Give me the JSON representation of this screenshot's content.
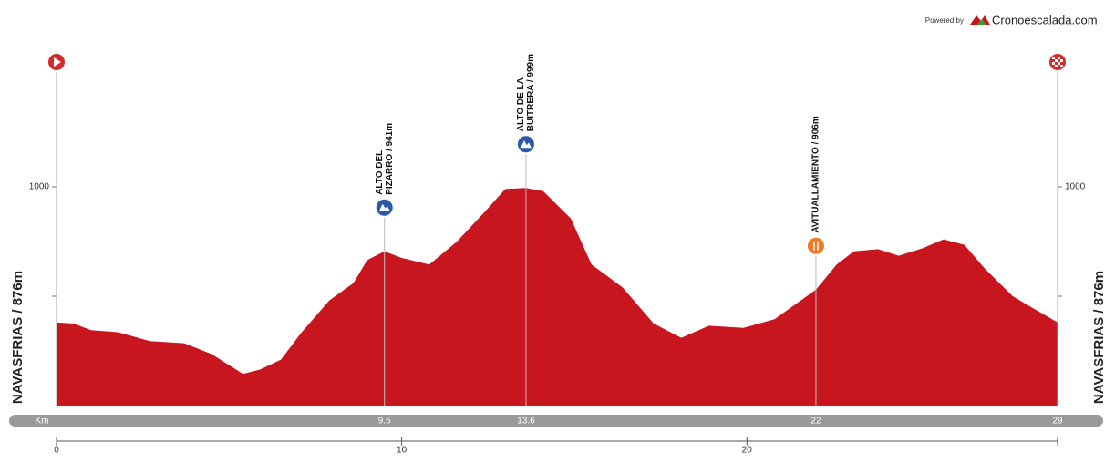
{
  "chart_data": {
    "type": "area",
    "branding": {
      "powered": "Powered by",
      "site": "Cronoescalada.com"
    },
    "start_label": "NAVASFRIAS / 876m",
    "finish_label": "NAVASFRIAS / 876m",
    "x_unit_label": "Km",
    "color": "#c8161e",
    "x": [
      0,
      0.5,
      1.0,
      1.8,
      2.7,
      3.7,
      4.5,
      5.4,
      5.9,
      6.5,
      7.1,
      7.9,
      8.6,
      9.0,
      9.5,
      10.0,
      10.8,
      11.6,
      12.4,
      13.0,
      13.6,
      14.1,
      14.9,
      15.5,
      16.4,
      17.3,
      18.1,
      18.9,
      19.9,
      20.8,
      22,
      22.6,
      23.1,
      23.8,
      24.4,
      25.1,
      25.7,
      26.3,
      26.9,
      27.7,
      28.4,
      29
    ],
    "values": [
      876,
      875,
      869,
      867,
      859,
      857,
      847,
      829,
      833,
      842,
      867,
      896,
      912,
      933,
      941,
      935,
      929,
      950,
      977,
      998,
      999,
      996,
      971,
      929,
      908,
      875,
      862,
      873,
      871,
      879,
      906,
      929,
      941,
      943,
      937,
      944,
      952,
      947,
      925,
      900,
      887,
      876
    ],
    "xlim": [
      0,
      29
    ],
    "ylim": [
      800,
      1100
    ],
    "xticks": [
      0,
      10,
      20
    ],
    "yticks": [
      1000
    ],
    "yminor_ticks": [
      900
    ],
    "points": [
      {
        "kind": "start",
        "km": 0
      },
      {
        "kind": "climb",
        "km": 9.5,
        "elevation": 941,
        "label_lines": [
          "ALTO DEL",
          "PIZARRO / 941m"
        ]
      },
      {
        "kind": "climb",
        "km": 13.6,
        "elevation": 999,
        "label_lines": [
          "ALTO DE LA",
          "BUITRERA / 999m"
        ]
      },
      {
        "kind": "feed",
        "km": 22,
        "elevation": 906,
        "label_lines": [
          "AVITUALLAMIENTO / 906m"
        ]
      },
      {
        "kind": "finish",
        "km": 29
      }
    ]
  }
}
